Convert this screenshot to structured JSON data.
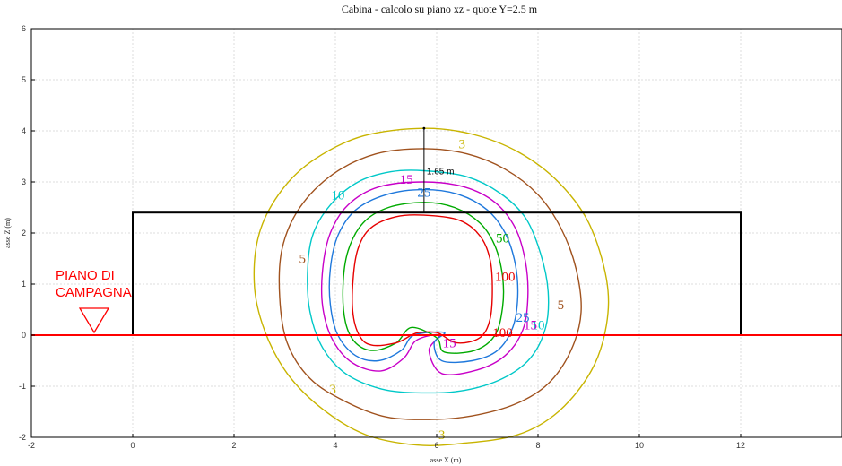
{
  "chart_data": {
    "type": "contour",
    "title": "Cabina  -  calcolo su piano xz  -  quote Y=2.5 m",
    "xlabel": "asse X (m)",
    "ylabel": "asse Z (m)",
    "xlim": [
      -2,
      14
    ],
    "ylim": [
      -2,
      6
    ],
    "xticks": [
      -2,
      0,
      2,
      4,
      6,
      8,
      10,
      12
    ],
    "yticks": [
      -2,
      -1,
      0,
      1,
      2,
      3,
      4,
      5,
      6
    ],
    "grid": true,
    "cabin_rectangle": {
      "x": [
        0,
        12
      ],
      "z": [
        0,
        2.4
      ]
    },
    "ground_level_z": 0,
    "ground_label": [
      "PIANO DI",
      "CAMPAGNA"
    ],
    "ground_marker_x": -1.0,
    "dimension": {
      "x": 5.75,
      "z_from": 2.4,
      "z_to": 4.05,
      "label": "1.65 m"
    },
    "contours": [
      {
        "level": "3",
        "color": "#c8b400",
        "labels": [
          {
            "x": 6.5,
            "z": 3.75
          },
          {
            "x": 3.95,
            "z": -1.05
          },
          {
            "x": 6.1,
            "z": -1.95
          }
        ]
      },
      {
        "level": "5",
        "color": "#a0521e",
        "labels": [
          {
            "x": 3.35,
            "z": 1.5
          },
          {
            "x": 8.45,
            "z": 0.6
          }
        ]
      },
      {
        "level": "10",
        "color": "#00c8c8",
        "labels": [
          {
            "x": 4.05,
            "z": 2.75
          },
          {
            "x": 8.0,
            "z": 0.2
          }
        ]
      },
      {
        "level": "15",
        "color": "#c800c8",
        "labels": [
          {
            "x": 5.4,
            "z": 3.05
          },
          {
            "x": 7.85,
            "z": 0.2
          },
          {
            "x": 6.25,
            "z": -0.15
          }
        ]
      },
      {
        "level": "25",
        "color": "#1e78dc",
        "labels": [
          {
            "x": 5.75,
            "z": 2.8
          },
          {
            "x": 7.7,
            "z": 0.35
          }
        ]
      },
      {
        "level": "50",
        "color": "#00aa00",
        "labels": [
          {
            "x": 7.3,
            "z": 1.9
          }
        ]
      },
      {
        "level": "100",
        "color": "#e60000",
        "labels": [
          {
            "x": 7.35,
            "z": 1.15
          },
          {
            "x": 7.3,
            "z": 0.05
          }
        ]
      }
    ]
  }
}
